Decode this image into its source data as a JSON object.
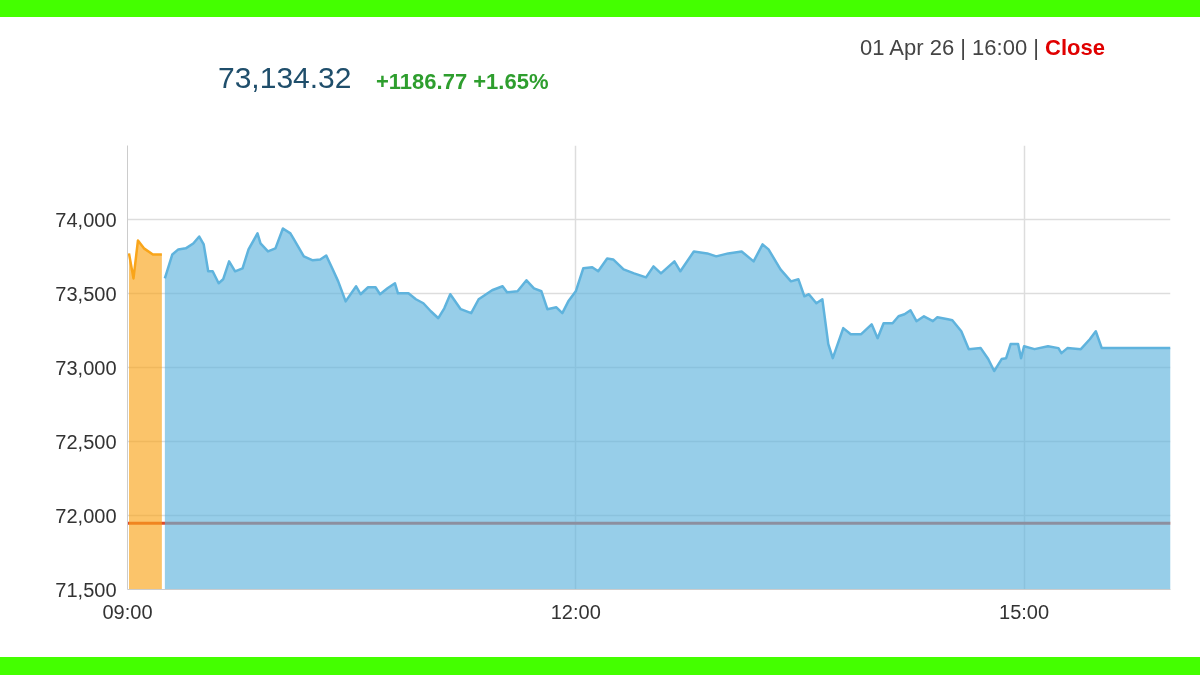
{
  "chart_data": {
    "type": "area",
    "title": "73,134.32",
    "subtitle": "+1186.77 +1.65%",
    "annotations": [
      "01 Apr 26 | 16:00 |",
      "Close"
    ],
    "xlim": [
      9,
      15.98
    ],
    "xticks": [
      {
        "value": 9,
        "label": "09:00"
      },
      {
        "value": 12,
        "label": "12:00"
      },
      {
        "value": 15,
        "label": "15:00"
      }
    ],
    "ylim": [
      71500,
      74500
    ],
    "yticks": [
      {
        "value": 71500,
        "label": "71,500"
      },
      {
        "value": 72000,
        "label": "72,000"
      },
      {
        "value": 72500,
        "label": "72,500"
      },
      {
        "value": 73000,
        "label": "73,000"
      },
      {
        "value": 73500,
        "label": "73,500"
      },
      {
        "value": 74000,
        "label": "74,000"
      }
    ],
    "grid": true,
    "ref_lines": [
      {
        "axis": "y",
        "value": 71947.55,
        "label": null,
        "color": "#e04b2c"
      }
    ],
    "series": [
      {
        "color": "#f9a51a",
        "x": [
          9.01,
          9.04,
          9.07,
          9.11,
          9.17,
          9.23
        ],
        "values": [
          73771,
          73602,
          73858,
          73805,
          73764,
          73764
        ]
      },
      {
        "color": "#5fb3dd",
        "x": [
          9.25,
          9.3,
          9.34,
          9.39,
          9.44,
          9.48,
          9.51,
          9.54,
          9.57,
          9.61,
          9.64,
          9.68,
          9.72,
          9.77,
          9.81,
          9.87,
          9.89,
          9.94,
          9.99,
          10.04,
          10.09,
          10.11,
          10.18,
          10.24,
          10.29,
          10.33,
          10.37,
          10.41,
          10.46,
          10.53,
          10.56,
          10.61,
          10.66,
          10.69,
          10.74,
          10.79,
          10.81,
          10.88,
          10.93,
          10.98,
          11.03,
          11.08,
          11.12,
          11.16,
          11.23,
          11.3,
          11.35,
          11.44,
          11.51,
          11.54,
          11.61,
          11.67,
          11.72,
          11.77,
          11.81,
          11.87,
          11.91,
          11.95,
          12.0,
          12.05,
          12.11,
          12.15,
          12.21,
          12.25,
          12.32,
          12.39,
          12.47,
          12.52,
          12.57,
          12.66,
          12.7,
          12.79,
          12.88,
          12.94,
          13.02,
          13.11,
          13.19,
          13.25,
          13.29,
          13.37,
          13.44,
          13.49,
          13.53,
          13.56,
          13.61,
          13.65,
          13.69,
          13.72,
          13.79,
          13.84,
          13.91,
          13.98,
          14.02,
          14.06,
          14.12,
          14.16,
          14.2,
          14.24,
          14.28,
          14.33,
          14.39,
          14.42,
          14.49,
          14.52,
          14.58,
          14.63,
          14.71,
          14.76,
          14.8,
          14.85,
          14.88,
          14.91,
          14.96,
          14.98,
          15.0,
          15.07,
          15.16,
          15.23,
          15.25,
          15.29,
          15.38,
          15.44,
          15.48,
          15.52,
          15.98
        ],
        "values": [
          73602,
          73764,
          73798,
          73805,
          73838,
          73885,
          73832,
          73650,
          73650,
          73569,
          73596,
          73717,
          73650,
          73670,
          73798,
          73906,
          73838,
          73784,
          73805,
          73939,
          73906,
          73872,
          73751,
          73724,
          73730,
          73757,
          73670,
          73582,
          73447,
          73549,
          73495,
          73542,
          73542,
          73495,
          73535,
          73569,
          73501,
          73501,
          73461,
          73434,
          73380,
          73333,
          73400,
          73495,
          73394,
          73367,
          73461,
          73522,
          73549,
          73508,
          73515,
          73589,
          73535,
          73515,
          73394,
          73407,
          73367,
          73447,
          73515,
          73670,
          73677,
          73650,
          73737,
          73730,
          73663,
          73636,
          73609,
          73683,
          73636,
          73717,
          73650,
          73784,
          73771,
          73751,
          73771,
          73784,
          73717,
          73832,
          73798,
          73663,
          73582,
          73596,
          73481,
          73495,
          73434,
          73461,
          73158,
          73063,
          73266,
          73225,
          73225,
          73292,
          73198,
          73299,
          73299,
          73346,
          73360,
          73387,
          73313,
          73346,
          73313,
          73340,
          73326,
          73319,
          73245,
          73124,
          73131,
          73057,
          72976,
          73057,
          73063,
          73158,
          73158,
          73063,
          73144,
          73124,
          73144,
          73131,
          73097,
          73131,
          73124,
          73191,
          73245,
          73131,
          73131
        ]
      }
    ]
  }
}
